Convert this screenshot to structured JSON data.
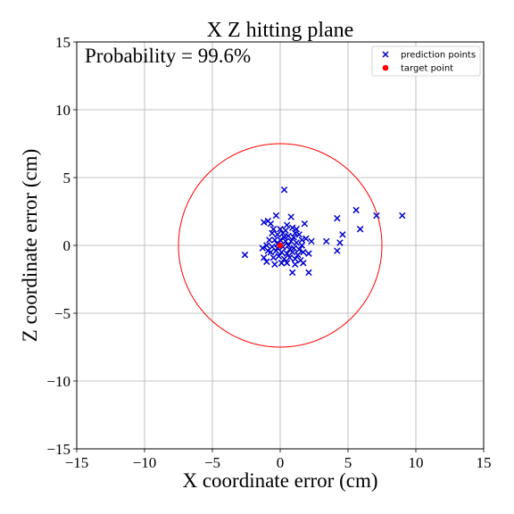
{
  "chart_data": {
    "type": "scatter",
    "title": "X Z hitting plane",
    "xlabel": "X coordinate error (cm)",
    "ylabel": "Z coordinate error (cm)",
    "xlim": [
      -15,
      15
    ],
    "ylim": [
      -15,
      15
    ],
    "xticks": [
      -15,
      -10,
      -5,
      0,
      5,
      10,
      15
    ],
    "yticks": [
      -15,
      -10,
      -5,
      0,
      5,
      10,
      15
    ],
    "xtick_labels": [
      "−15",
      "−10",
      "−5",
      "0",
      "5",
      "10",
      "15"
    ],
    "ytick_labels": [
      "−15",
      "−10",
      "−5",
      "0",
      "5",
      "10",
      "15"
    ],
    "grid": true,
    "annotation": "Probability = 99.6%",
    "legend_position": "top-right",
    "circle": {
      "center": [
        0,
        0
      ],
      "radius": 7.5,
      "color": "#ff0000"
    },
    "series": [
      {
        "name": "prediction points",
        "marker": "x",
        "color": "#0000cc",
        "points": [
          [
            0.3,
            4.1
          ],
          [
            5.6,
            2.6
          ],
          [
            7.1,
            2.2
          ],
          [
            9.0,
            2.2
          ],
          [
            4.2,
            2.0
          ],
          [
            5.9,
            1.2
          ],
          [
            4.6,
            0.8
          ],
          [
            4.4,
            0.2
          ],
          [
            4.2,
            -0.4
          ],
          [
            3.4,
            0.3
          ],
          [
            2.3,
            0.3
          ],
          [
            1.8,
            1.6
          ],
          [
            2.1,
            -0.6
          ],
          [
            2.1,
            -2.0
          ],
          [
            0.9,
            -2.0
          ],
          [
            -2.6,
            -0.7
          ],
          [
            -1.2,
            1.7
          ],
          [
            -0.9,
            1.8
          ],
          [
            -0.7,
            1.6
          ],
          [
            -0.3,
            2.2
          ],
          [
            0.8,
            2.1
          ],
          [
            -1.3,
            -0.2
          ],
          [
            -1.2,
            -0.9
          ],
          [
            -1.0,
            -1.2
          ],
          [
            -0.4,
            -1.4
          ],
          [
            1.1,
            -1.4
          ],
          [
            1.7,
            -1.3
          ],
          [
            1.5,
            -1.1
          ],
          [
            1.9,
            0.5
          ],
          [
            1.6,
            0.0
          ],
          [
            0.5,
            1.5
          ],
          [
            1.2,
            1.2
          ],
          [
            -0.5,
            1.2
          ],
          [
            -0.2,
            0.8
          ],
          [
            0.2,
            0.9
          ],
          [
            0.6,
            0.7
          ],
          [
            1.0,
            0.6
          ],
          [
            1.4,
            0.8
          ],
          [
            -0.8,
            0.4
          ],
          [
            -0.4,
            0.4
          ],
          [
            0.0,
            0.4
          ],
          [
            0.4,
            0.3
          ],
          [
            0.8,
            0.3
          ],
          [
            1.2,
            0.2
          ],
          [
            -1.0,
            0.0
          ],
          [
            -0.6,
            -0.1
          ],
          [
            -0.2,
            0.1
          ],
          [
            0.2,
            -0.1
          ],
          [
            0.6,
            0.0
          ],
          [
            1.0,
            -0.2
          ],
          [
            1.4,
            -0.3
          ],
          [
            -0.7,
            -0.5
          ],
          [
            -0.3,
            -0.4
          ],
          [
            0.1,
            -0.5
          ],
          [
            0.5,
            -0.6
          ],
          [
            0.9,
            -0.5
          ],
          [
            1.3,
            -0.7
          ],
          [
            -0.5,
            -0.9
          ],
          [
            -0.1,
            -0.8
          ],
          [
            0.3,
            -1.0
          ],
          [
            0.7,
            -0.9
          ],
          [
            1.1,
            -1.0
          ],
          [
            0.1,
            -1.3
          ],
          [
            0.5,
            -1.3
          ],
          [
            -0.6,
            0.9
          ],
          [
            0.0,
            1.2
          ],
          [
            0.9,
            1.3
          ],
          [
            1.6,
            0.4
          ],
          [
            -0.9,
            -0.4
          ],
          [
            1.7,
            -0.5
          ],
          [
            0.3,
            0.6
          ],
          [
            0.7,
            -0.3
          ],
          [
            -0.2,
            -0.2
          ],
          [
            0.4,
            1.1
          ],
          [
            1.1,
            0.9
          ]
        ]
      },
      {
        "name": "target point",
        "marker": "o",
        "color": "#ff0000",
        "points": [
          [
            0,
            0
          ]
        ]
      }
    ]
  }
}
